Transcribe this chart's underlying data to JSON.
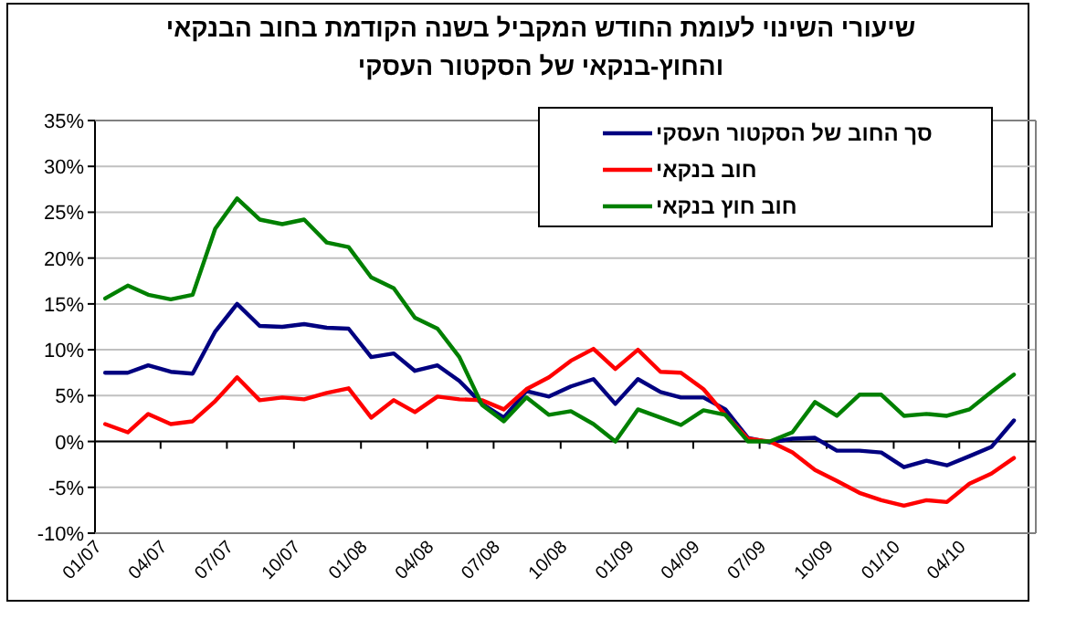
{
  "chart_data": {
    "type": "line",
    "title": "שיעורי השינוי לעומת החודש המקביל בשנה הקודמת בחוב הבנקאי\nוהחוץ-בנקאי של הסקטור העסקי",
    "x": [
      "2007-01-15",
      "2007-02-15",
      "2007-03-15",
      "2007-04-15",
      "2007-05-15",
      "2007-06-15",
      "2007-07-15",
      "2007-08-15",
      "2007-09-15",
      "2007-10-15",
      "2007-11-15",
      "2007-12-15",
      "2008-01-15",
      "2008-02-15",
      "2008-03-15",
      "2008-04-15",
      "2008-05-15",
      "2008-06-15",
      "2008-07-15",
      "2008-08-15",
      "2008-09-15",
      "2008-10-15",
      "2008-11-15",
      "2008-12-15",
      "2009-01-15",
      "2009-02-15",
      "2009-03-15",
      "2009-04-15",
      "2009-05-15",
      "2009-06-15",
      "2009-07-15",
      "2009-08-15",
      "2009-09-15",
      "2009-10-15",
      "2009-11-15",
      "2009-12-15",
      "2010-01-15",
      "2010-02-15",
      "2010-03-15",
      "2010-04-15",
      "2010-05-15",
      "2010-06-15"
    ],
    "series": [
      {
        "name": "סך החוב של הסקטור העסקי",
        "color": "#000080",
        "values": [
          7.5,
          7.5,
          8.3,
          7.6,
          7.4,
          12.0,
          15.0,
          12.6,
          12.5,
          12.8,
          12.4,
          12.3,
          9.2,
          9.6,
          7.7,
          8.3,
          6.6,
          4.1,
          2.6,
          5.5,
          4.9,
          6.0,
          6.8,
          4.1,
          6.8,
          5.4,
          4.8,
          4.8,
          3.5,
          0.4,
          -0.1,
          0.3,
          0.4,
          -1.0,
          -1.0,
          -1.2,
          -2.8,
          -2.1,
          -2.6,
          -1.6,
          -0.6,
          2.3
        ]
      },
      {
        "name": "חוב בנקאי",
        "color": "#ff0000",
        "values": [
          1.9,
          1.0,
          3.0,
          1.9,
          2.2,
          4.4,
          7.0,
          4.5,
          4.8,
          4.6,
          5.3,
          5.8,
          2.6,
          4.5,
          3.2,
          4.9,
          4.6,
          4.5,
          3.5,
          5.7,
          7.0,
          8.8,
          10.1,
          7.9,
          10.0,
          7.6,
          7.5,
          5.7,
          2.9,
          0.3,
          0,
          -1.2,
          -3.1,
          -4.3,
          -5.6,
          -6.4,
          -7.0,
          -6.4,
          -6.6,
          -4.6,
          -3.5,
          -1.8
        ]
      },
      {
        "name": "חוב חוץ בנקאי",
        "color": "#008000",
        "values": [
          15.6,
          17.0,
          16.0,
          15.5,
          16.0,
          23.2,
          26.5,
          24.2,
          23.7,
          24.2,
          21.7,
          21.2,
          17.9,
          16.7,
          13.5,
          12.3,
          9.2,
          4.0,
          2.2,
          4.8,
          2.9,
          3.3,
          1.9,
          0,
          3.5,
          2.6,
          1.8,
          3.4,
          2.9,
          0,
          0,
          1.0,
          4.3,
          2.8,
          5.1,
          5.1,
          2.8,
          3.0,
          2.8,
          3.5,
          5.4,
          7.3
        ]
      }
    ],
    "xlim": [
      "2007-01-01",
      "2010-07-15"
    ],
    "xticks": [
      {
        "value": "2007-01-01",
        "label": "01/07"
      },
      {
        "value": "2007-04-01",
        "label": "04/07"
      },
      {
        "value": "2007-07-01",
        "label": "07/07"
      },
      {
        "value": "2007-10-01",
        "label": "10/07"
      },
      {
        "value": "2008-01-01",
        "label": "01/08"
      },
      {
        "value": "2008-04-01",
        "label": "04/08"
      },
      {
        "value": "2008-07-01",
        "label": "07/08"
      },
      {
        "value": "2008-10-01",
        "label": "10/08"
      },
      {
        "value": "2009-01-01",
        "label": "01/09"
      },
      {
        "value": "2009-04-01",
        "label": "04/09"
      },
      {
        "value": "2009-07-01",
        "label": "07/09"
      },
      {
        "value": "2009-10-01",
        "label": "10/09"
      },
      {
        "value": "2010-01-01",
        "label": "01/10"
      },
      {
        "value": "2010-04-01",
        "label": "04/10"
      }
    ],
    "ylim": [
      -10,
      35
    ],
    "yticks": [
      {
        "value": -10,
        "label": "-10%"
      },
      {
        "value": -5,
        "label": "-5%"
      },
      {
        "value": 0,
        "label": "0%"
      },
      {
        "value": 5,
        "label": "5%"
      },
      {
        "value": 10,
        "label": "10%"
      },
      {
        "value": 15,
        "label": "15%"
      },
      {
        "value": 20,
        "label": "20%"
      },
      {
        "value": 25,
        "label": "25%"
      },
      {
        "value": 30,
        "label": "30%"
      },
      {
        "value": 35,
        "label": "35%"
      }
    ],
    "grid": "y",
    "legend": "top right",
    "marker": "none",
    "line_style": "solid"
  }
}
